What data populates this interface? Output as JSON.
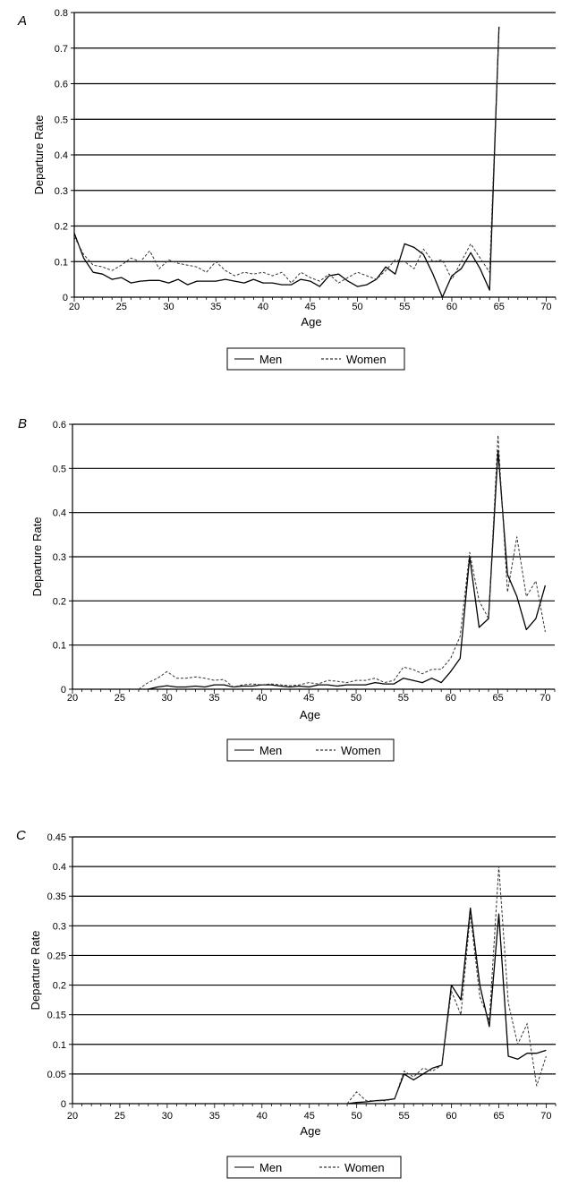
{
  "chart_data": [
    {
      "panel_label": "A",
      "type": "line",
      "xlabel": "Age",
      "ylabel": "Departure Rate",
      "xlim": [
        20,
        71
      ],
      "ylim": [
        0,
        0.8
      ],
      "x_ticks": [
        20,
        25,
        30,
        35,
        40,
        45,
        50,
        55,
        60,
        65,
        70
      ],
      "y_ticks": [
        0,
        0.1,
        0.2,
        0.3,
        0.4,
        0.5,
        0.6,
        0.7,
        0.8
      ],
      "y_tick_labels": [
        "0",
        "0.1",
        "0.2",
        "0.3",
        "0.4",
        "0.5",
        "0.6",
        "0.7",
        "0.8"
      ],
      "grid": "horizontal",
      "legend": "bottom",
      "series": [
        {
          "name": "Men",
          "style": "solid",
          "x": [
            20,
            21,
            22,
            23,
            24,
            25,
            26,
            27,
            28,
            29,
            30,
            31,
            32,
            33,
            34,
            35,
            36,
            37,
            38,
            39,
            40,
            41,
            42,
            43,
            44,
            45,
            46,
            47,
            48,
            49,
            50,
            51,
            52,
            53,
            54,
            55,
            56,
            57,
            58,
            59,
            60,
            61,
            62,
            63,
            64,
            65
          ],
          "values": [
            0.18,
            0.11,
            0.07,
            0.065,
            0.05,
            0.055,
            0.04,
            0.045,
            0.047,
            0.047,
            0.04,
            0.05,
            0.035,
            0.045,
            0.045,
            0.045,
            0.05,
            0.045,
            0.04,
            0.05,
            0.04,
            0.04,
            0.035,
            0.035,
            0.05,
            0.045,
            0.03,
            0.06,
            0.065,
            0.045,
            0.03,
            0.035,
            0.05,
            0.085,
            0.065,
            0.15,
            0.14,
            0.12,
            0.065,
            0.0,
            0.06,
            0.08,
            0.125,
            0.08,
            0.02,
            0.76
          ]
        },
        {
          "name": "Women",
          "style": "dashed",
          "x": [
            20,
            21,
            22,
            23,
            24,
            25,
            26,
            27,
            28,
            29,
            30,
            31,
            32,
            33,
            34,
            35,
            36,
            37,
            38,
            39,
            40,
            41,
            42,
            43,
            44,
            45,
            46,
            47,
            48,
            49,
            50,
            51,
            52,
            53,
            54,
            55,
            56,
            57,
            58,
            59,
            60,
            61,
            62,
            63,
            64,
            65
          ],
          "values": [
            0.17,
            0.12,
            0.09,
            0.085,
            0.075,
            0.09,
            0.11,
            0.1,
            0.13,
            0.08,
            0.105,
            0.095,
            0.09,
            0.085,
            0.07,
            0.1,
            0.075,
            0.06,
            0.07,
            0.065,
            0.07,
            0.06,
            0.07,
            0.04,
            0.07,
            0.055,
            0.045,
            0.065,
            0.04,
            0.055,
            0.07,
            0.06,
            0.05,
            0.075,
            0.105,
            0.1,
            0.08,
            0.135,
            0.1,
            0.105,
            0.05,
            0.1,
            0.15,
            0.11,
            0.07,
            0.76
          ]
        }
      ]
    },
    {
      "panel_label": "B",
      "type": "line",
      "xlabel": "Age",
      "ylabel": "Departure Rate",
      "xlim": [
        20,
        71
      ],
      "ylim": [
        0,
        0.6
      ],
      "x_ticks": [
        20,
        25,
        30,
        35,
        40,
        45,
        50,
        55,
        60,
        65,
        70
      ],
      "y_ticks": [
        0,
        0.1,
        0.2,
        0.3,
        0.4,
        0.5,
        0.6
      ],
      "y_tick_labels": [
        "0",
        "0.1",
        "0.2",
        "0.3",
        "0.4",
        "0.5",
        "0.6"
      ],
      "grid": "horizontal",
      "legend": "bottom",
      "series": [
        {
          "name": "Men",
          "style": "solid",
          "x": [
            28,
            29,
            30,
            31,
            32,
            33,
            34,
            35,
            36,
            37,
            38,
            39,
            40,
            41,
            42,
            43,
            44,
            45,
            46,
            47,
            48,
            49,
            50,
            51,
            52,
            53,
            54,
            55,
            56,
            57,
            58,
            59,
            60,
            61,
            62,
            63,
            64,
            65,
            66,
            67,
            68,
            69,
            70
          ],
          "values": [
            0.0,
            0.005,
            0.008,
            0.005,
            0.005,
            0.007,
            0.005,
            0.01,
            0.01,
            0.005,
            0.007,
            0.007,
            0.01,
            0.01,
            0.007,
            0.005,
            0.007,
            0.005,
            0.01,
            0.01,
            0.007,
            0.01,
            0.01,
            0.01,
            0.015,
            0.012,
            0.012,
            0.025,
            0.02,
            0.015,
            0.025,
            0.015,
            0.04,
            0.07,
            0.3,
            0.14,
            0.16,
            0.54,
            0.26,
            0.21,
            0.135,
            0.16,
            0.235
          ]
        },
        {
          "name": "Women",
          "style": "dashed",
          "x": [
            27,
            28,
            29,
            30,
            31,
            32,
            33,
            34,
            35,
            36,
            37,
            38,
            39,
            40,
            41,
            42,
            43,
            44,
            45,
            46,
            47,
            48,
            49,
            50,
            51,
            52,
            53,
            54,
            55,
            56,
            57,
            58,
            59,
            60,
            61,
            62,
            63,
            64,
            65,
            66,
            67,
            68,
            69,
            70
          ],
          "values": [
            0.0,
            0.015,
            0.025,
            0.04,
            0.025,
            0.025,
            0.028,
            0.025,
            0.02,
            0.022,
            0.005,
            0.01,
            0.012,
            0.01,
            0.012,
            0.01,
            0.008,
            0.01,
            0.015,
            0.012,
            0.02,
            0.018,
            0.015,
            0.02,
            0.02,
            0.025,
            0.015,
            0.02,
            0.05,
            0.045,
            0.035,
            0.045,
            0.045,
            0.07,
            0.12,
            0.31,
            0.2,
            0.16,
            0.575,
            0.22,
            0.345,
            0.21,
            0.245,
            0.13
          ]
        }
      ]
    },
    {
      "panel_label": "C",
      "type": "line",
      "xlabel": "Age",
      "ylabel": "Departure Rate",
      "xlim": [
        20,
        71
      ],
      "ylim": [
        0,
        0.45
      ],
      "x_ticks": [
        20,
        25,
        30,
        35,
        40,
        45,
        50,
        55,
        60,
        65,
        70
      ],
      "y_ticks": [
        0,
        0.05,
        0.1,
        0.15,
        0.2,
        0.25,
        0.3,
        0.35,
        0.4,
        0.45
      ],
      "y_tick_labels": [
        "0",
        "0.05",
        "0.1",
        "0.15",
        "0.2",
        "0.25",
        "0.3",
        "0.35",
        "0.4",
        "0.45"
      ],
      "grid": "horizontal",
      "legend": "bottom",
      "series": [
        {
          "name": "Men",
          "style": "solid",
          "x": [
            49,
            50,
            51,
            52,
            53,
            54,
            55,
            56,
            57,
            58,
            59,
            60,
            61,
            62,
            63,
            64,
            65,
            66,
            67,
            68,
            69,
            70
          ],
          "values": [
            0.0,
            0.002,
            0.003,
            0.005,
            0.006,
            0.008,
            0.05,
            0.04,
            0.05,
            0.06,
            0.065,
            0.2,
            0.175,
            0.33,
            0.2,
            0.13,
            0.32,
            0.08,
            0.075,
            0.085,
            0.085,
            0.09
          ]
        },
        {
          "name": "Women",
          "style": "dashed",
          "x": [
            49,
            50,
            51,
            52,
            53,
            54,
            55,
            56,
            57,
            58,
            59,
            60,
            61,
            62,
            63,
            64,
            65,
            66,
            67,
            68,
            69,
            70
          ],
          "values": [
            0.0,
            0.02,
            0.005,
            0.005,
            0.005,
            0.008,
            0.055,
            0.045,
            0.06,
            0.055,
            0.065,
            0.19,
            0.15,
            0.32,
            0.18,
            0.14,
            0.4,
            0.17,
            0.1,
            0.135,
            0.03,
            0.08
          ]
        }
      ]
    }
  ]
}
